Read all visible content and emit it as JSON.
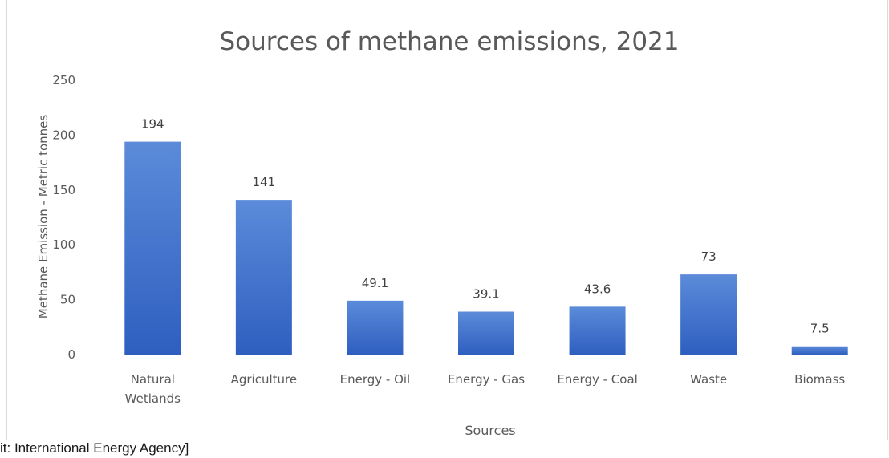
{
  "chart_data": {
    "type": "bar",
    "title": "Sources of methane emissions, 2021",
    "xlabel": "Sources",
    "ylabel": "Methane Emission - Metric tonnes",
    "categories": [
      [
        "Natural",
        "Wetlands"
      ],
      [
        "Agriculture"
      ],
      [
        "Energy - Oil"
      ],
      [
        "Energy - Gas"
      ],
      [
        "Energy - Coal"
      ],
      [
        "Waste"
      ],
      [
        "Biomass"
      ]
    ],
    "values": [
      194,
      141,
      49.1,
      39.1,
      43.6,
      73,
      7.5
    ],
    "data_labels": [
      "194",
      "141",
      "49.1",
      "39.1",
      "43.6",
      "73",
      "7.5"
    ],
    "yticks": [
      0,
      50,
      100,
      150,
      200,
      250
    ],
    "ylim": [
      0,
      250
    ],
    "grid": false,
    "legend": "none",
    "bar_color_top": "#5b8bd9",
    "bar_color_bottom": "#2e5fc0"
  },
  "credit": "it: International Energy Agency]"
}
